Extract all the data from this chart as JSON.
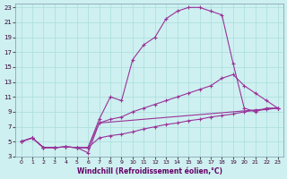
{
  "xlabel": "Windchill (Refroidissement éolien,°C)",
  "bg_color": "#cef0f0",
  "line_color": "#993399",
  "xlim": [
    -0.5,
    23.5
  ],
  "ylim": [
    3,
    23.5
  ],
  "xticks": [
    0,
    1,
    2,
    3,
    4,
    5,
    6,
    7,
    8,
    9,
    10,
    11,
    12,
    13,
    14,
    15,
    16,
    17,
    18,
    19,
    20,
    21,
    22,
    23
  ],
  "yticks": [
    3,
    5,
    7,
    9,
    11,
    13,
    15,
    17,
    19,
    21,
    23
  ],
  "line1_x": [
    0,
    1,
    2,
    3,
    4,
    5,
    6,
    7,
    8,
    9,
    10,
    11,
    12,
    13,
    14,
    15,
    16,
    17,
    18,
    19,
    20,
    21,
    22,
    23
  ],
  "line1_y": [
    5,
    5.5,
    4.2,
    4.2,
    4.3,
    4.2,
    4.2,
    8.0,
    11.0,
    10.5,
    16.0,
    18.0,
    19.0,
    21.5,
    22.5,
    23.0,
    23.0,
    22.5,
    22.0,
    15.5,
    9.5,
    9.0,
    9.5,
    9.5
  ],
  "line2_x": [
    0,
    1,
    2,
    3,
    4,
    5,
    6,
    7,
    8,
    9,
    10,
    11,
    12,
    13,
    14,
    15,
    16,
    17,
    18,
    19,
    20,
    21,
    22,
    23
  ],
  "line2_y": [
    5,
    5.5,
    4.2,
    4.2,
    4.3,
    4.2,
    4.2,
    7.5,
    8.0,
    8.3,
    9.0,
    9.5,
    10.0,
    10.5,
    11.0,
    11.5,
    12.0,
    12.5,
    13.5,
    14.0,
    12.5,
    11.5,
    10.5,
    9.5
  ],
  "line3_x": [
    0,
    1,
    2,
    3,
    4,
    5,
    6,
    7,
    8,
    9,
    10,
    11,
    12,
    13,
    14,
    15,
    16,
    17,
    18,
    19,
    20,
    21,
    22,
    23
  ],
  "line3_y": [
    5,
    5.5,
    4.2,
    4.2,
    4.3,
    4.2,
    4.2,
    5.5,
    5.8,
    6.0,
    6.3,
    6.7,
    7.0,
    7.3,
    7.5,
    7.8,
    8.0,
    8.3,
    8.5,
    8.7,
    9.0,
    9.2,
    9.3,
    9.5
  ],
  "line4_x": [
    0,
    1,
    2,
    3,
    4,
    5,
    6,
    7,
    23
  ],
  "line4_y": [
    5,
    5.5,
    4.2,
    4.2,
    4.3,
    4.2,
    3.5,
    7.5,
    9.5
  ]
}
